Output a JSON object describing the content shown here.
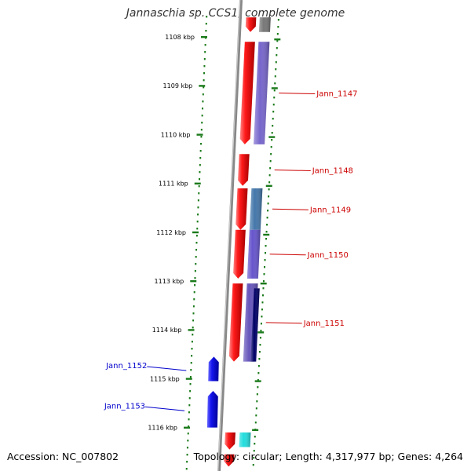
{
  "title": "Jannaschia sp. CCS1, complete genome",
  "footer": {
    "accession": "Accession: NC_007802",
    "summary": "Topology: circular; Length: 4,317,977 bp; Genes: 4,264"
  },
  "colors": {
    "backbone": "#888888",
    "tick": "#1a7a1a",
    "forward_label": "#cc0000",
    "reverse_label": "#0000cc"
  },
  "chart_data": {
    "type": "genome-map",
    "units": "kbp",
    "ticks": [
      {
        "kbp": 1108,
        "label": "1108 kbp"
      },
      {
        "kbp": 1109,
        "label": "1109 kbp"
      },
      {
        "kbp": 1110,
        "label": "1110 kbp"
      },
      {
        "kbp": 1111,
        "label": "1111 kbp"
      },
      {
        "kbp": 1112,
        "label": "1112 kbp"
      },
      {
        "kbp": 1113,
        "label": "1113 kbp"
      },
      {
        "kbp": 1114,
        "label": "1114 kbp"
      },
      {
        "kbp": 1115,
        "label": "1115 kbp"
      },
      {
        "kbp": 1116,
        "label": "1116 kbp"
      }
    ],
    "genes": [
      {
        "name": "",
        "start": 1107.6,
        "end": 1107.9,
        "strand": "+",
        "color": "#ee1111"
      },
      {
        "name": "Jann_1147",
        "start": 1108.1,
        "end": 1110.2,
        "strand": "+",
        "color": "#ee1111"
      },
      {
        "name": "Jann_1148",
        "start": 1110.4,
        "end": 1111.05,
        "strand": "+",
        "color": "#ee1111"
      },
      {
        "name": "Jann_1149",
        "start": 1111.1,
        "end": 1111.95,
        "strand": "+",
        "color": "#ee1111"
      },
      {
        "name": "Jann_1150",
        "start": 1111.95,
        "end": 1112.95,
        "strand": "+",
        "color": "#ee1111"
      },
      {
        "name": "Jann_1151",
        "start": 1113.05,
        "end": 1114.65,
        "strand": "+",
        "color": "#ee1111"
      },
      {
        "name": "Jann_1152",
        "start": 1114.55,
        "end": 1115.05,
        "strand": "-",
        "color": "#1111dd"
      },
      {
        "name": "Jann_1153",
        "start": 1115.25,
        "end": 1116.0,
        "strand": "-",
        "color": "#1111dd"
      },
      {
        "name": "",
        "start": 1116.1,
        "end": 1116.45,
        "strand": "+",
        "color": "#ee1111"
      },
      {
        "name": "",
        "start": 1116.55,
        "end": 1116.8,
        "strand": "+",
        "color": "#ee1111"
      }
    ],
    "cogs": [
      {
        "start": 1107.6,
        "end": 1107.9,
        "color": "#777777"
      },
      {
        "start": 1108.1,
        "end": 1110.2,
        "color": "#7766cc"
      },
      {
        "start": 1111.1,
        "end": 1111.95,
        "color": "#4477aa"
      },
      {
        "start": 1111.95,
        "end": 1112.95,
        "color": "#6655cc"
      },
      {
        "start": 1113.05,
        "end": 1114.65,
        "color": "#6655bb"
      },
      {
        "start": 1113.15,
        "end": 1114.65,
        "color": "#000066"
      },
      {
        "start": 1116.1,
        "end": 1116.4,
        "color": "#22dddd"
      }
    ]
  }
}
